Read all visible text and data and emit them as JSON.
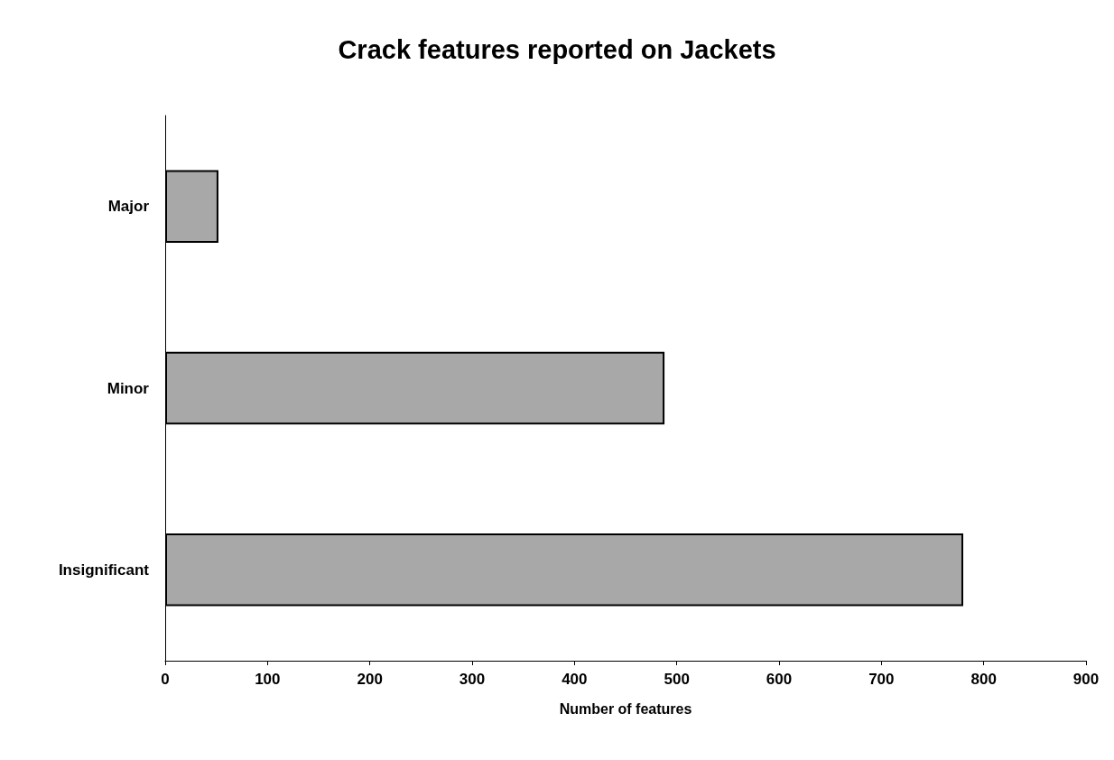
{
  "chart_data": {
    "type": "bar",
    "orientation": "horizontal",
    "title": "Crack features reported on Jackets",
    "xlabel": "Number of features",
    "categories": [
      "Major",
      "Minor",
      "Insignificant"
    ],
    "values": [
      52,
      488,
      780
    ],
    "color": "#a8a8a8",
    "xlim": [
      0,
      900
    ],
    "xticks": [
      0,
      100,
      200,
      300,
      400,
      500,
      600,
      700,
      800,
      900
    ],
    "grid": false
  }
}
